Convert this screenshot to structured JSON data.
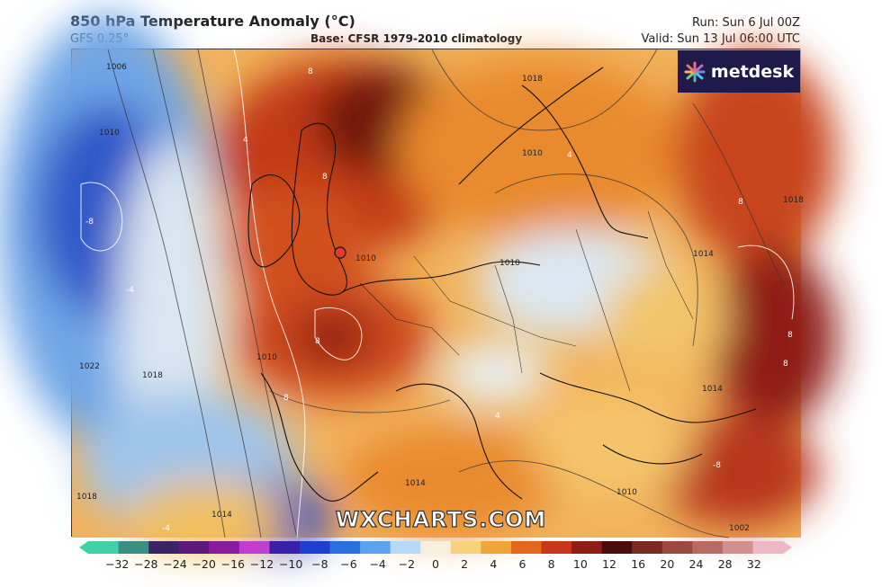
{
  "header": {
    "title": "850 hPa Temperature Anomaly (°C)",
    "model": "GFS 0.25°",
    "base": "Base: CFSR 1979-2010 climatology",
    "run": "Run: Sun 6 Jul 00Z",
    "valid": "Valid: Sun 13 Jul 06:00 UTC"
  },
  "logo": {
    "text": "metdesk",
    "icon": "starburst-icon"
  },
  "watermark": "WXCHARTS.COM",
  "map": {
    "region": "Europe",
    "marker_color": "#e53935",
    "isobar_labels": [
      "1006",
      "1010",
      "1010",
      "1018",
      "1010",
      "1014",
      "1018",
      "1022",
      "1018",
      "1014",
      "1010",
      "1014",
      "1010",
      "1002",
      "1018",
      "1014",
      "1010"
    ],
    "anomaly_labels": [
      "8",
      "-8",
      "8",
      "8",
      "-4",
      "4",
      "8",
      "-8",
      "8",
      "8",
      "8",
      "-4",
      "4",
      "4"
    ]
  },
  "colorbar": {
    "ticks": [
      "−32",
      "−28",
      "−24",
      "−20",
      "−16",
      "−12",
      "−10",
      "−8",
      "−6",
      "−4",
      "−2",
      "0",
      "2",
      "4",
      "6",
      "8",
      "10",
      "12",
      "16",
      "20",
      "24",
      "28",
      "32"
    ],
    "colors": [
      "#3fd1a8",
      "#3a8f84",
      "#3b2466",
      "#5e1a7a",
      "#8b1aa0",
      "#c13fd0",
      "#3a1fa8",
      "#1b3fcf",
      "#2a6fe0",
      "#5ba3ee",
      "#b8d9f5",
      "#f6f0dc",
      "#f7d27a",
      "#f0a53a",
      "#e2671d",
      "#c7361a",
      "#8e1d14",
      "#4a0d0c",
      "#7a2a22",
      "#9c4a3f",
      "#b96b62",
      "#d28f8c",
      "#eeb7c5"
    ]
  }
}
